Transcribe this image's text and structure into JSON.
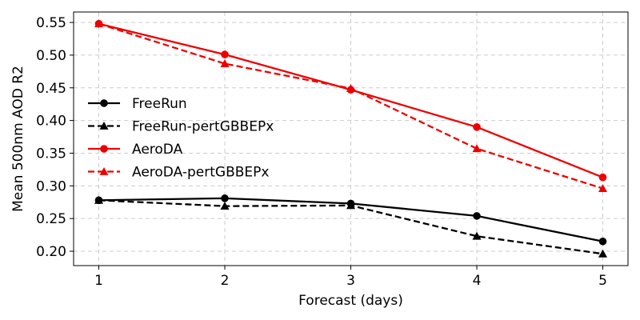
{
  "chart_data": {
    "type": "line",
    "xlabel": "Forecast (days)",
    "ylabel": "Mean 500nm AOD R2",
    "x": [
      1,
      2,
      3,
      4,
      5
    ],
    "xlim": [
      0.8,
      5.2
    ],
    "ylim": [
      0.178,
      0.566
    ],
    "xticks": [
      1,
      2,
      3,
      4,
      5
    ],
    "yticks": [
      0.2,
      0.25,
      0.3,
      0.35,
      0.4,
      0.45,
      0.5,
      0.55
    ],
    "ytick_labels": [
      "0.20",
      "0.25",
      "0.30",
      "0.35",
      "0.40",
      "0.45",
      "0.50",
      "0.55"
    ],
    "grid": true,
    "legend_position": "center-left",
    "series": [
      {
        "name": "FreeRun",
        "values": [
          0.278,
          0.281,
          0.273,
          0.254,
          0.215
        ],
        "color": "#000000",
        "linestyle": "solid",
        "marker": "circle"
      },
      {
        "name": "FreeRun-pertGBBEPx",
        "values": [
          0.278,
          0.269,
          0.27,
          0.223,
          0.196
        ],
        "color": "#000000",
        "linestyle": "dashed",
        "marker": "triangle"
      },
      {
        "name": "AeroDA",
        "values": [
          0.548,
          0.501,
          0.447,
          0.39,
          0.313
        ],
        "color": "#ee0000",
        "linestyle": "solid",
        "marker": "circle"
      },
      {
        "name": "AeroDA-pertGBBEPx",
        "values": [
          0.548,
          0.487,
          0.449,
          0.357,
          0.296
        ],
        "color": "#ee0000",
        "linestyle": "dashed",
        "marker": "triangle"
      }
    ]
  }
}
